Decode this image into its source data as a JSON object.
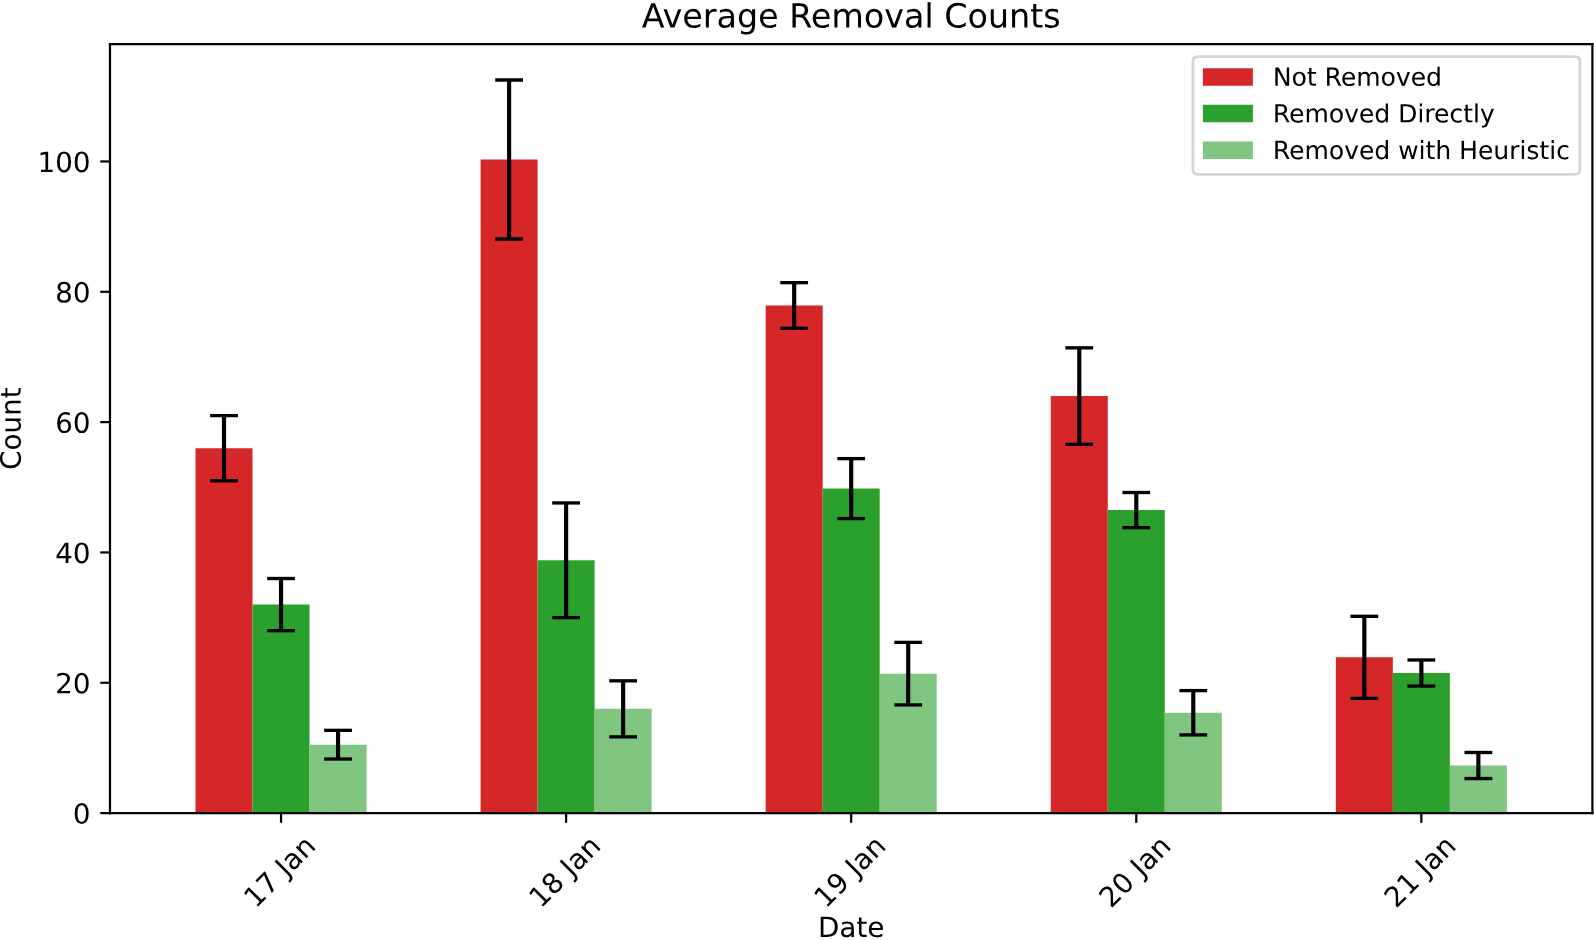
{
  "chart_data": {
    "type": "bar",
    "title": "Average Removal Counts",
    "xlabel": "Date",
    "ylabel": "Count",
    "categories": [
      "17 Jan",
      "18 Jan",
      "19 Jan",
      "20 Jan",
      "21 Jan"
    ],
    "series": [
      {
        "name": "Not Removed",
        "color": "#d62728",
        "values": [
          56,
          100.3,
          77.9,
          64,
          23.9
        ],
        "errors": [
          5,
          12.2,
          3.5,
          7.4,
          6.3
        ]
      },
      {
        "name": "Removed Directly",
        "color": "#2ca02c",
        "values": [
          32,
          38.8,
          49.8,
          46.5,
          21.5
        ],
        "errors": [
          4,
          8.8,
          4.6,
          2.7,
          2
        ]
      },
      {
        "name": "Removed with Heuristic",
        "color": "#80c680",
        "values": [
          10.5,
          16,
          21.4,
          15.4,
          7.3
        ],
        "errors": [
          2.2,
          4.3,
          4.8,
          3.4,
          2
        ]
      }
    ],
    "ylim": [
      0,
      118
    ],
    "yticks": [
      0,
      20,
      40,
      60,
      80,
      100
    ],
    "legend": "upper right",
    "grid": false
  }
}
